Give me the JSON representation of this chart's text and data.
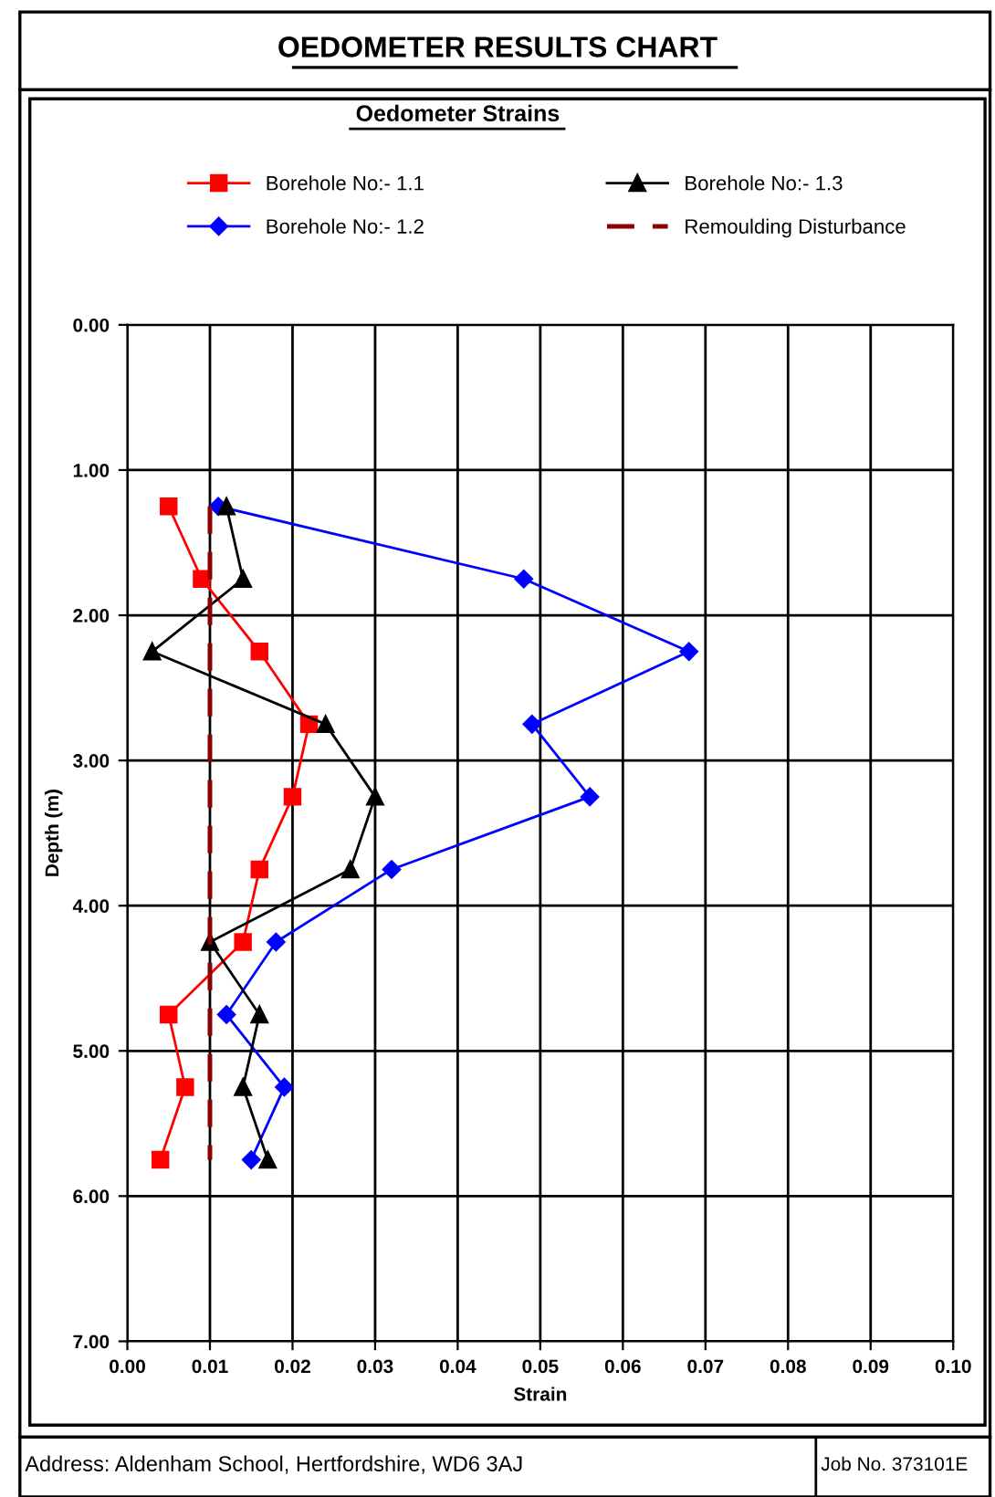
{
  "chart_data": {
    "type": "line",
    "title": "OEDOMETER RESULTS CHART",
    "subtitle": "Oedometer Strains",
    "xlabel": "Strain",
    "ylabel": "Depth (m)",
    "series": [
      {
        "name": "Borehole No:- 1.1",
        "color": "#ff0000",
        "marker": "square",
        "x": [
          0.005,
          0.009,
          0.016,
          0.022,
          0.02,
          0.016,
          0.014,
          0.005,
          0.007,
          0.004
        ],
        "values": [
          1.25,
          1.75,
          2.25,
          2.75,
          3.25,
          3.75,
          4.25,
          4.75,
          5.25,
          5.75
        ]
      },
      {
        "name": "Borehole No:- 1.2",
        "color": "#0000ff",
        "marker": "diamond",
        "x": [
          0.011,
          0.048,
          0.068,
          0.049,
          0.056,
          0.032,
          0.018,
          0.012,
          0.019,
          0.015
        ],
        "values": [
          1.25,
          1.75,
          2.25,
          2.75,
          3.25,
          3.75,
          4.25,
          4.75,
          5.25,
          5.75
        ]
      },
      {
        "name": "Borehole No:- 1.3",
        "color": "#000000",
        "marker": "triangle",
        "x": [
          0.012,
          0.014,
          0.003,
          0.024,
          0.03,
          0.027,
          0.01,
          0.016,
          0.014,
          0.017
        ],
        "values": [
          1.25,
          1.75,
          2.25,
          2.75,
          3.25,
          3.75,
          4.25,
          4.75,
          5.25,
          5.75
        ]
      },
      {
        "name": "Remoulding Disturbance",
        "color": "#8b0000",
        "marker": "none",
        "line_style": "dashed",
        "x": [
          0.01,
          0.01
        ],
        "values": [
          1.25,
          5.75
        ]
      }
    ],
    "xlim": [
      0,
      0.1
    ],
    "xticks": [
      {
        "value": 0,
        "label": "0.00"
      },
      {
        "value": 0.01,
        "label": "0.01"
      },
      {
        "value": 0.02,
        "label": "0.02"
      },
      {
        "value": 0.03,
        "label": "0.03"
      },
      {
        "value": 0.04,
        "label": "0.04"
      },
      {
        "value": 0.05,
        "label": "0.05"
      },
      {
        "value": 0.06,
        "label": "0.06"
      },
      {
        "value": 0.07,
        "label": "0.07"
      },
      {
        "value": 0.08,
        "label": "0.08"
      },
      {
        "value": 0.09,
        "label": "0.09"
      },
      {
        "value": 0.1,
        "label": "0.10"
      }
    ],
    "ylim": [
      7,
      0
    ],
    "yticks": [
      {
        "value": 0,
        "label": "0.00"
      },
      {
        "value": 1,
        "label": "1.00"
      },
      {
        "value": 2,
        "label": "2.00"
      },
      {
        "value": 3,
        "label": "3.00"
      },
      {
        "value": 4,
        "label": "4.00"
      },
      {
        "value": 5,
        "label": "5.00"
      },
      {
        "value": 6,
        "label": "6.00"
      },
      {
        "value": 7,
        "label": "7.00"
      }
    ],
    "grid": true,
    "legend": "top",
    "annotations": [
      "Address: Aldenham School, Hertfordshire, WD6 3AJ",
      "Job No. 373101E"
    ]
  }
}
